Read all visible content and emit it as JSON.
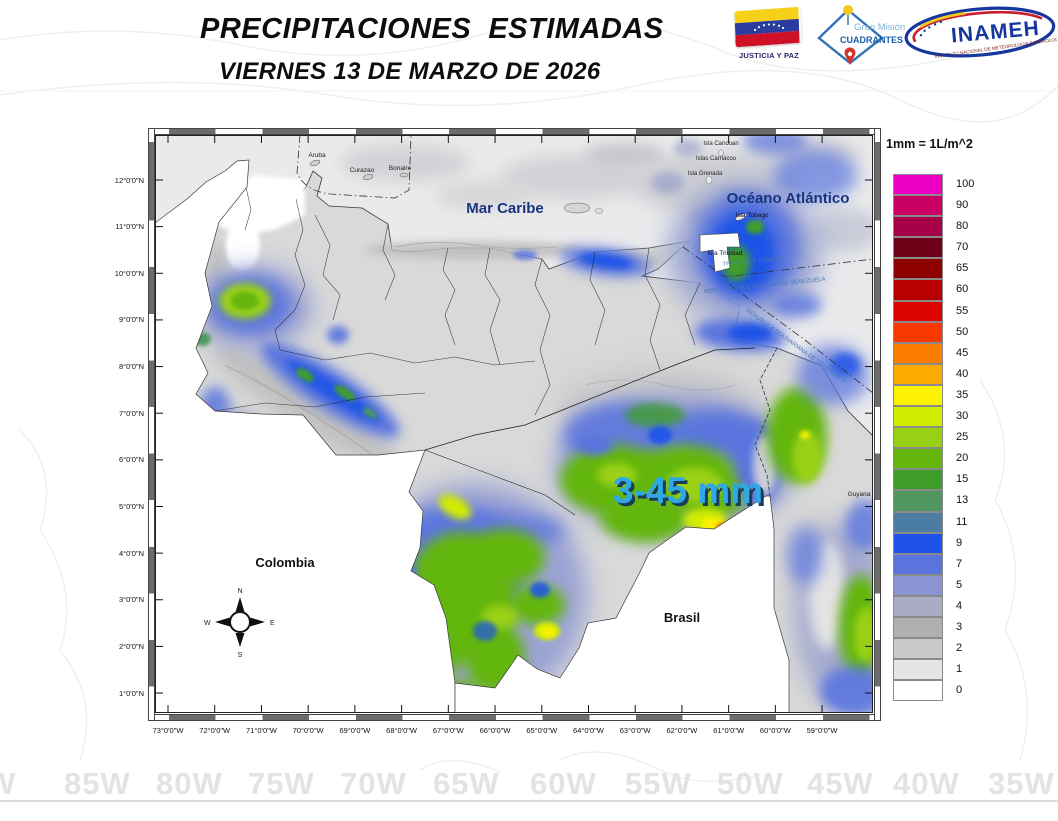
{
  "header": {
    "title": "PRECIPITACIONES  ESTIMADAS",
    "subtitle": "VIERNES 13 DE MARZO DE 2026"
  },
  "logos": {
    "flag_caption": "JUSTICIA Y PAZ",
    "mision_line1": "Gran Misión",
    "mision_line2": "CUADRANTES DE PAZ",
    "inameh_name": "INAMEH",
    "inameh_subtitle": "INSTITUTO NACIONAL DE METEOROLOGIA E HIDROLOGIA"
  },
  "map": {
    "ocean_labels": {
      "caribbean": "Mar Caribe",
      "atlantic": "Océano Atlántico"
    },
    "island_labels": [
      "Aruba",
      "Curazao",
      "Bonaire",
      "Isla Canouan",
      "Islas Carriacou",
      "Isla Grenada",
      "Isla Tobago",
      "Isla Trinidad"
    ],
    "country_labels": {
      "colombia": "Colombia",
      "brasil": "Brasil",
      "guyana": "Guyana"
    },
    "boundary_labels": {
      "trinidad": "TRINIDAD Y TOBAGO",
      "venezuela_upper": "REPUBLICA BOLIVARIANA DE VENEZUELA",
      "venezuela_lower": "REPUBLICA BOLIVARIANA DE VENEZUELA"
    },
    "annotation": {
      "text": "3-45 mm",
      "color": "#2FA8E8"
    },
    "compass": {
      "n": "N",
      "e": "E",
      "s": "S",
      "w": "W"
    },
    "lat_ticks": [
      "12°0'0\"N",
      "11°0'0\"N",
      "10°0'0\"N",
      "9°0'0\"N",
      "8°0'0\"N",
      "7°0'0\"N",
      "6°0'0\"N",
      "5°0'0\"N",
      "4°0'0\"N",
      "3°0'0\"N",
      "2°0'0\"N",
      "1°0'0\"N"
    ],
    "lon_ticks": [
      "73°0'0\"W",
      "72°0'0\"W",
      "71°0'0\"W",
      "70°0'0\"W",
      "69°0'0\"W",
      "68°0'0\"W",
      "67°0'0\"W",
      "66°0'0\"W",
      "65°0'0\"W",
      "64°0'0\"W",
      "63°0'0\"W",
      "62°0'0\"W",
      "61°0'0\"W",
      "60°0'0\"W",
      "59°0'0\"W"
    ]
  },
  "legend": {
    "title": "1mm = 1L/m^2",
    "items": [
      {
        "value": "100",
        "color": "#ED00C3"
      },
      {
        "value": "90",
        "color": "#C80064"
      },
      {
        "value": "80",
        "color": "#A50048"
      },
      {
        "value": "70",
        "color": "#6E0018"
      },
      {
        "value": "65",
        "color": "#8F0000"
      },
      {
        "value": "60",
        "color": "#B80000"
      },
      {
        "value": "55",
        "color": "#DC0500"
      },
      {
        "value": "50",
        "color": "#F93800"
      },
      {
        "value": "45",
        "color": "#FA7D00"
      },
      {
        "value": "40",
        "color": "#FBAB00"
      },
      {
        "value": "35",
        "color": "#FBF100"
      },
      {
        "value": "30",
        "color": "#D2EC00"
      },
      {
        "value": "25",
        "color": "#9AD014"
      },
      {
        "value": "20",
        "color": "#64B60C"
      },
      {
        "value": "15",
        "color": "#3F9E2A"
      },
      {
        "value": "13",
        "color": "#4F9660"
      },
      {
        "value": "11",
        "color": "#4A7CA4"
      },
      {
        "value": "9",
        "color": "#1F52E8"
      },
      {
        "value": "7",
        "color": "#5A74DE"
      },
      {
        "value": "5",
        "color": "#8A94D2"
      },
      {
        "value": "4",
        "color": "#ABACC4"
      },
      {
        "value": "3",
        "color": "#B0B0B0"
      },
      {
        "value": "2",
        "color": "#C9C9C9"
      },
      {
        "value": "1",
        "color": "#E5E5E5"
      },
      {
        "value": "0",
        "color": "#FFFFFF"
      }
    ]
  },
  "watermark": {
    "lon_labels": [
      "W",
      "85W",
      "80W",
      "75W",
      "70W",
      "65W",
      "60W",
      "55W",
      "50W",
      "45W",
      "40W",
      "35W"
    ]
  }
}
